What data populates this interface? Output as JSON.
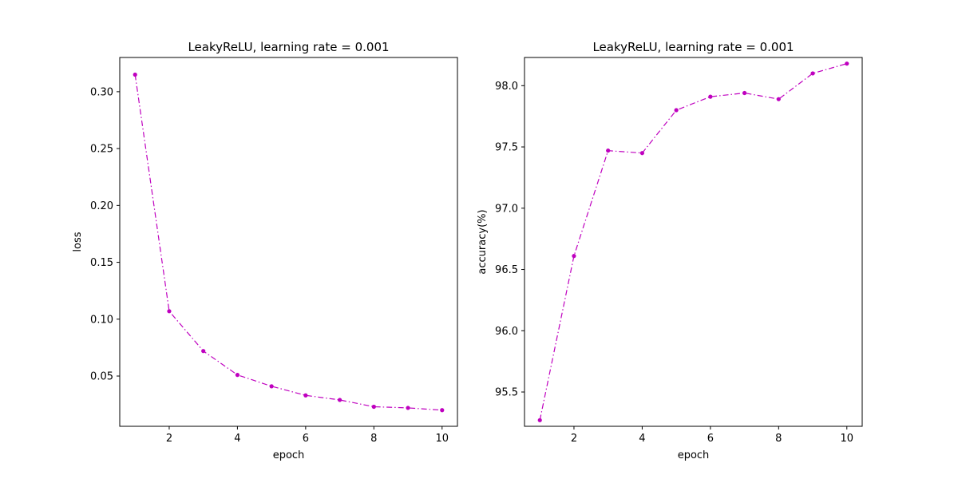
{
  "chart_data": [
    {
      "type": "line",
      "title": "LeakyReLU, learning rate = 0.001",
      "xlabel": "epoch",
      "ylabel": "loss",
      "xlim": [
        0.55,
        10.45
      ],
      "ylim": [
        0.0058,
        0.3301
      ],
      "xticks": [
        2,
        4,
        6,
        8,
        10
      ],
      "xtick_labels": [
        "2",
        "4",
        "6",
        "8",
        "10"
      ],
      "yticks": [
        0.05,
        0.1,
        0.15,
        0.2,
        0.25,
        0.3
      ],
      "ytick_labels": [
        "0.05",
        "0.10",
        "0.15",
        "0.20",
        "0.25",
        "0.30"
      ],
      "grid": false,
      "line_style": "dash-dot",
      "marker": "circle",
      "color": "#bf00bf",
      "x": [
        1,
        2,
        3,
        4,
        5,
        6,
        7,
        8,
        9,
        10
      ],
      "y": [
        0.315,
        0.107,
        0.072,
        0.051,
        0.041,
        0.033,
        0.029,
        0.023,
        0.022,
        0.02
      ]
    },
    {
      "type": "line",
      "title": "LeakyReLU, learning rate = 0.001",
      "xlabel": "epoch",
      "ylabel": "accuracy(%)",
      "xlim": [
        0.55,
        10.45
      ],
      "ylim": [
        95.22,
        98.23
      ],
      "xticks": [
        2,
        4,
        6,
        8,
        10
      ],
      "xtick_labels": [
        "2",
        "4",
        "6",
        "8",
        "10"
      ],
      "yticks": [
        95.5,
        96.0,
        96.5,
        97.0,
        97.5,
        98.0
      ],
      "ytick_labels": [
        "95.5",
        "96.0",
        "96.5",
        "97.0",
        "97.5",
        "98.0"
      ],
      "grid": false,
      "line_style": "dash-dot",
      "marker": "circle",
      "color": "#bf00bf",
      "x": [
        1,
        2,
        3,
        4,
        5,
        6,
        7,
        8,
        9,
        10
      ],
      "y": [
        95.27,
        96.61,
        97.47,
        97.45,
        97.8,
        97.91,
        97.94,
        97.89,
        98.1,
        98.18
      ]
    }
  ]
}
